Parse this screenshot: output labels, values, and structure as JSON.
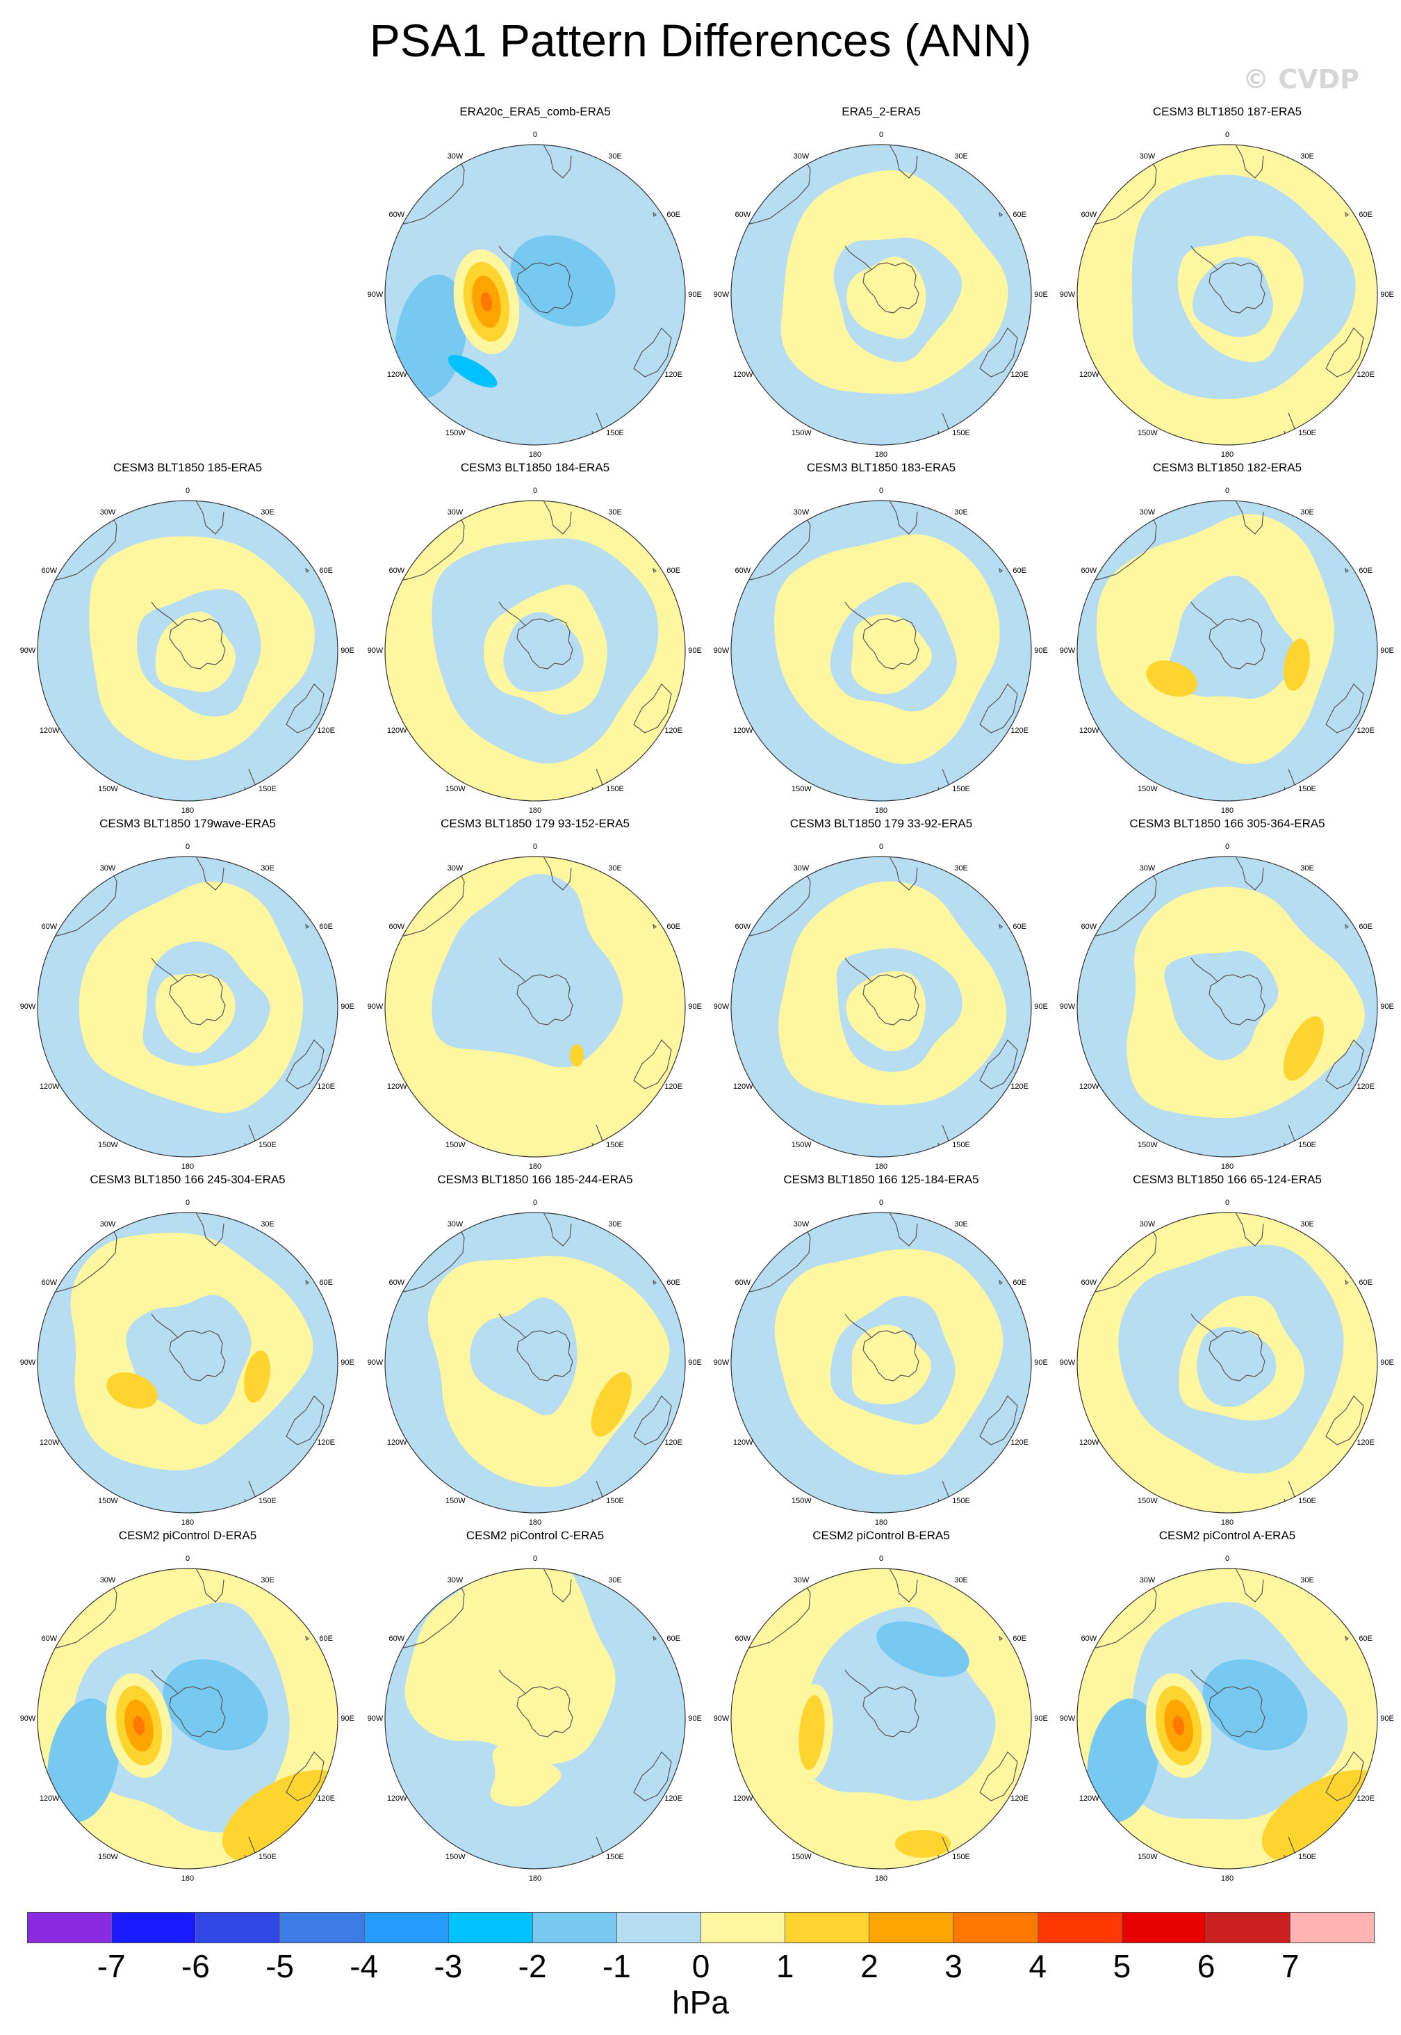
{
  "page_title": "PSA1 Pattern Differences (ANN)",
  "watermark": "© CVDP",
  "lon_labels": [
    "0",
    "30E",
    "60E",
    "90E",
    "120E",
    "150E",
    "180",
    "150W",
    "120W",
    "90W",
    "60W",
    "30W"
  ],
  "colorbar": {
    "colors": [
      "#8a2be2",
      "#1a1aff",
      "#3048e6",
      "#3d7ce6",
      "#249cff",
      "#00c2ff",
      "#78c9f2",
      "#b7ddf2",
      "#fff7a0",
      "#ffd42e",
      "#ffa400",
      "#ff7800",
      "#ff3800",
      "#e80000",
      "#cc2020",
      "#ffb4b4"
    ],
    "tick_labels": [
      "-7",
      "-6",
      "-5",
      "-4",
      "-3",
      "-2",
      "-1",
      "0",
      "1",
      "2",
      "3",
      "4",
      "5",
      "6",
      "7"
    ],
    "unit": "hPa"
  },
  "panels": [
    {
      "title": "ERA20c_ERA5_comb-ERA5",
      "row": 0,
      "col": 1,
      "pattern": "strong-neg-lobe",
      "dominant_colors": [
        "#b7ddf2",
        "#78c9f2",
        "#fff7a0",
        "#ffd42e",
        "#ffa400",
        "#ff7800"
      ]
    },
    {
      "title": "ERA5_2-ERA5",
      "row": 0,
      "col": 2,
      "pattern": "ring",
      "dominant_colors": [
        "#fff7a0",
        "#b7ddf2"
      ]
    },
    {
      "title": "CESM3 BLT1850 187-ERA5",
      "row": 0,
      "col": 3,
      "pattern": "ring",
      "dominant_colors": [
        "#fff7a0",
        "#b7ddf2"
      ]
    },
    {
      "title": "CESM3 BLT1850 185-ERA5",
      "row": 1,
      "col": 0,
      "pattern": "ring",
      "dominant_colors": [
        "#fff7a0",
        "#b7ddf2"
      ]
    },
    {
      "title": "CESM3 BLT1850 184-ERA5",
      "row": 1,
      "col": 1,
      "pattern": "ring",
      "dominant_colors": [
        "#fff7a0",
        "#b7ddf2"
      ]
    },
    {
      "title": "CESM3 BLT1850 183-ERA5",
      "row": 1,
      "col": 2,
      "pattern": "ring",
      "dominant_colors": [
        "#fff7a0",
        "#b7ddf2"
      ]
    },
    {
      "title": "CESM3 BLT1850 182-ERA5",
      "row": 1,
      "col": 3,
      "pattern": "two-blobs",
      "dominant_colors": [
        "#b7ddf2",
        "#fff7a0",
        "#ffd42e"
      ]
    },
    {
      "title": "CESM3 BLT1850 179wave-ERA5",
      "row": 2,
      "col": 0,
      "pattern": "ring",
      "dominant_colors": [
        "#fff7a0",
        "#b7ddf2"
      ]
    },
    {
      "title": "CESM3 BLT1850 179 93-152-ERA5",
      "row": 2,
      "col": 1,
      "pattern": "east-yellow",
      "dominant_colors": [
        "#fff7a0",
        "#b7ddf2",
        "#ffd42e"
      ]
    },
    {
      "title": "CESM3 BLT1850 179 33-92-ERA5",
      "row": 2,
      "col": 2,
      "pattern": "ring",
      "dominant_colors": [
        "#b7ddf2",
        "#fff7a0"
      ]
    },
    {
      "title": "CESM3 BLT1850 166 305-364-ERA5",
      "row": 2,
      "col": 3,
      "pattern": "east-blob",
      "dominant_colors": [
        "#fff7a0",
        "#b7ddf2",
        "#ffd42e"
      ]
    },
    {
      "title": "CESM3 BLT1850 166 245-304-ERA5",
      "row": 3,
      "col": 0,
      "pattern": "two-blobs",
      "dominant_colors": [
        "#b7ddf2",
        "#fff7a0",
        "#ffd42e"
      ]
    },
    {
      "title": "CESM3 BLT1850 166 185-244-ERA5",
      "row": 3,
      "col": 1,
      "pattern": "east-blob",
      "dominant_colors": [
        "#b7ddf2",
        "#fff7a0",
        "#ffd42e"
      ]
    },
    {
      "title": "CESM3 BLT1850 166 125-184-ERA5",
      "row": 3,
      "col": 2,
      "pattern": "ring",
      "dominant_colors": [
        "#b7ddf2",
        "#fff7a0"
      ]
    },
    {
      "title": "CESM3 BLT1850 166 65-124-ERA5",
      "row": 3,
      "col": 3,
      "pattern": "ring",
      "dominant_colors": [
        "#b7ddf2",
        "#fff7a0"
      ]
    },
    {
      "title": "CESM2 piControl D-ERA5",
      "row": 4,
      "col": 0,
      "pattern": "strong",
      "dominant_colors": [
        "#fff7a0",
        "#78c9f2",
        "#b7ddf2",
        "#ffd42e",
        "#ffa400",
        "#ff7800"
      ]
    },
    {
      "title": "CESM2 piControl C-ERA5",
      "row": 4,
      "col": 1,
      "pattern": "weak",
      "dominant_colors": [
        "#fff7a0",
        "#b7ddf2"
      ]
    },
    {
      "title": "CESM2 piControl B-ERA5",
      "row": 4,
      "col": 2,
      "pattern": "medium",
      "dominant_colors": [
        "#fff7a0",
        "#b7ddf2",
        "#78c9f2",
        "#ffd42e"
      ]
    },
    {
      "title": "CESM2 piControl A-ERA5",
      "row": 4,
      "col": 3,
      "pattern": "strong",
      "dominant_colors": [
        "#b7ddf2",
        "#78c9f2",
        "#fff7a0",
        "#ffd42e",
        "#ffa400",
        "#ff7800",
        "#00c2ff"
      ]
    }
  ]
}
